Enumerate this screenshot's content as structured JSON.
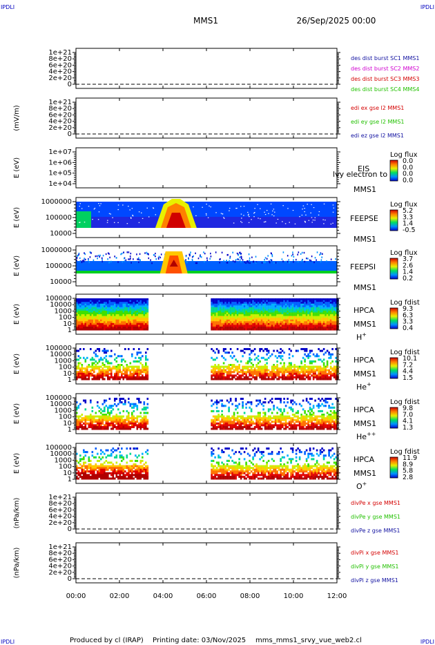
{
  "corner_labels": {
    "top_left": "IPDLI",
    "top_right": "IPDLI",
    "bottom_left": "IPDLI",
    "bottom_right": "IPDLI"
  },
  "header": {
    "spacecraft": "MMS1",
    "date": "26/Sep/2025 00:00"
  },
  "footer": {
    "produced_by": "Produced by cl (IRAP)",
    "printing_date": "Printing date: 03/Nov/2025",
    "filename": "mms_mms1_srvy_vue_web2.cl"
  },
  "time_axis": {
    "start_hours": 0,
    "end_hours": 12,
    "ticks": [
      "00:00",
      "02:00",
      "04:00",
      "06:00",
      "08:00",
      "10:00",
      "12:00"
    ]
  },
  "colors": {
    "red": "#d40000",
    "magenta": "#d000d0",
    "green": "#22c000",
    "blue": "#1010a0"
  },
  "chart_data": [
    {
      "id": "des-dist-burst",
      "type": "line",
      "ylabel": "",
      "yticks": [
        "1e+21",
        "8e+20",
        "6e+20",
        "4e+20",
        "2e+20",
        "0"
      ],
      "ylim": [
        0,
        1e+21
      ],
      "legend": [
        {
          "text": "des dist burst SC1 MMS1",
          "color": "#1010a0"
        },
        {
          "text": "des dist burst SC2 MMS2",
          "color": "#d000d0"
        },
        {
          "text": "des dist burst SC3 MMS3",
          "color": "#d40000"
        },
        {
          "text": "des dist burst SC4 MMS4",
          "color": "#22c000"
        }
      ],
      "series": []
    },
    {
      "id": "edi-e-gse",
      "type": "line",
      "ylabel": "(mV/m)",
      "yticks": [
        "1e+21",
        "8e+20",
        "6e+20",
        "4e+20",
        "2e+20",
        "0"
      ],
      "ylim": [
        0,
        1e+21
      ],
      "legend": [
        {
          "text": "edi ex gse l2 MMS1",
          "color": "#d40000"
        },
        {
          "text": "edi ey gse l2 MMS1",
          "color": "#22c000"
        },
        {
          "text": "edi ez gse l2 MMS1",
          "color": "#1010a0"
        }
      ],
      "series": []
    },
    {
      "id": "eis",
      "type": "heatmap",
      "ylabel": "E (eV)",
      "yticks": [
        "1e+07",
        "1e+06",
        "1e+05",
        "1e+04"
      ],
      "ylim": [
        10000,
        10000000
      ],
      "instrument": [
        "EIS",
        "MMS1"
      ],
      "overlay": "lvy electron to",
      "colorbar": {
        "title": "Log flux",
        "ticks": [
          "0.0",
          "0.0",
          "0.0",
          "0.0"
        ]
      },
      "empty": true
    },
    {
      "id": "feeps-e",
      "type": "heatmap",
      "ylabel": "E (eV)",
      "yticks": [
        "1000000",
        "100000",
        "10000"
      ],
      "ylim": [
        10000,
        1000000
      ],
      "instrument": [
        "FEEPSE",
        "MMS1"
      ],
      "colorbar": {
        "title": "Log flux",
        "ticks": [
          "5.2",
          "3.3",
          "1.4",
          "-0.5"
        ]
      },
      "empty": false
    },
    {
      "id": "feeps-i",
      "type": "heatmap",
      "ylabel": "E (eV)",
      "yticks": [
        "1000000",
        "100000",
        "10000"
      ],
      "ylim": [
        10000,
        1000000
      ],
      "instrument": [
        "FEEPSI",
        "MMS1"
      ],
      "colorbar": {
        "title": "Log flux",
        "ticks": [
          "3.7",
          "2.6",
          "1.4",
          "0.2"
        ]
      },
      "empty": false
    },
    {
      "id": "hpca-h",
      "type": "heatmap",
      "ylabel": "E (eV)",
      "yticks": [
        "100000",
        "10000",
        "1000",
        "100",
        "10",
        "1"
      ],
      "ylim": [
        1,
        100000
      ],
      "instrument": [
        "HPCA",
        "MMS1"
      ],
      "species": {
        "base": "H",
        "sup": "+"
      },
      "colorbar": {
        "title": "Log fdist",
        "ticks": [
          "9.3",
          "6.3",
          "3.3",
          "0.4"
        ]
      },
      "gap_hours": [
        3.3,
        6.2
      ],
      "empty": false
    },
    {
      "id": "hpca-he1",
      "type": "heatmap",
      "ylabel": "E (eV)",
      "yticks": [
        "100000",
        "10000",
        "1000",
        "100",
        "10",
        "1"
      ],
      "ylim": [
        1,
        100000
      ],
      "instrument": [
        "HPCA",
        "MMS1"
      ],
      "species": {
        "base": "He",
        "sup": "+"
      },
      "colorbar": {
        "title": "Log fdist",
        "ticks": [
          "10.1",
          "7.2",
          "4.4",
          "1.5"
        ]
      },
      "gap_hours": [
        3.3,
        6.2
      ],
      "empty": false
    },
    {
      "id": "hpca-he2",
      "type": "heatmap",
      "ylabel": "E (eV)",
      "yticks": [
        "100000",
        "10000",
        "1000",
        "100",
        "10",
        "1"
      ],
      "ylim": [
        1,
        100000
      ],
      "instrument": [
        "HPCA",
        "MMS1"
      ],
      "species": {
        "base": "He",
        "sup": "++"
      },
      "colorbar": {
        "title": "Log fdist",
        "ticks": [
          "9.8",
          "7.0",
          "4.1",
          "1.3"
        ]
      },
      "gap_hours": [
        3.3,
        6.2
      ],
      "empty": false
    },
    {
      "id": "hpca-o",
      "type": "heatmap",
      "ylabel": "E (eV)",
      "yticks": [
        "100000",
        "10000",
        "1000",
        "100",
        "10",
        "1"
      ],
      "ylim": [
        1,
        100000
      ],
      "instrument": [
        "HPCA",
        "MMS1"
      ],
      "species": {
        "base": "O",
        "sup": "+"
      },
      "colorbar": {
        "title": "Log fdist",
        "ticks": [
          "11.9",
          "8.9",
          "5.8",
          "2.8"
        ]
      },
      "gap_hours": [
        3.3,
        6.2
      ],
      "empty": false
    },
    {
      "id": "divpe",
      "type": "line",
      "ylabel": "(nPa/km)",
      "yticks": [
        "1e+21",
        "8e+20",
        "6e+20",
        "4e+20",
        "2e+20",
        "0"
      ],
      "ylim": [
        0,
        1e+21
      ],
      "legend": [
        {
          "text": "divPe x gse MMS1",
          "color": "#d40000"
        },
        {
          "text": "divPe y gse MMS1",
          "color": "#22c000"
        },
        {
          "text": "divPe z gse MMS1",
          "color": "#1010a0"
        }
      ],
      "series": []
    },
    {
      "id": "divpi",
      "type": "line",
      "ylabel": "(nPa/km)",
      "yticks": [
        "1e+21",
        "8e+20",
        "6e+20",
        "4e+20",
        "2e+20",
        "0"
      ],
      "ylim": [
        0,
        1e+21
      ],
      "legend": [
        {
          "text": "divPi x gse MMS1",
          "color": "#d40000"
        },
        {
          "text": "divPi y gse MMS1",
          "color": "#22c000"
        },
        {
          "text": "divPi z gse MMS1",
          "color": "#1010a0"
        }
      ],
      "series": []
    }
  ]
}
